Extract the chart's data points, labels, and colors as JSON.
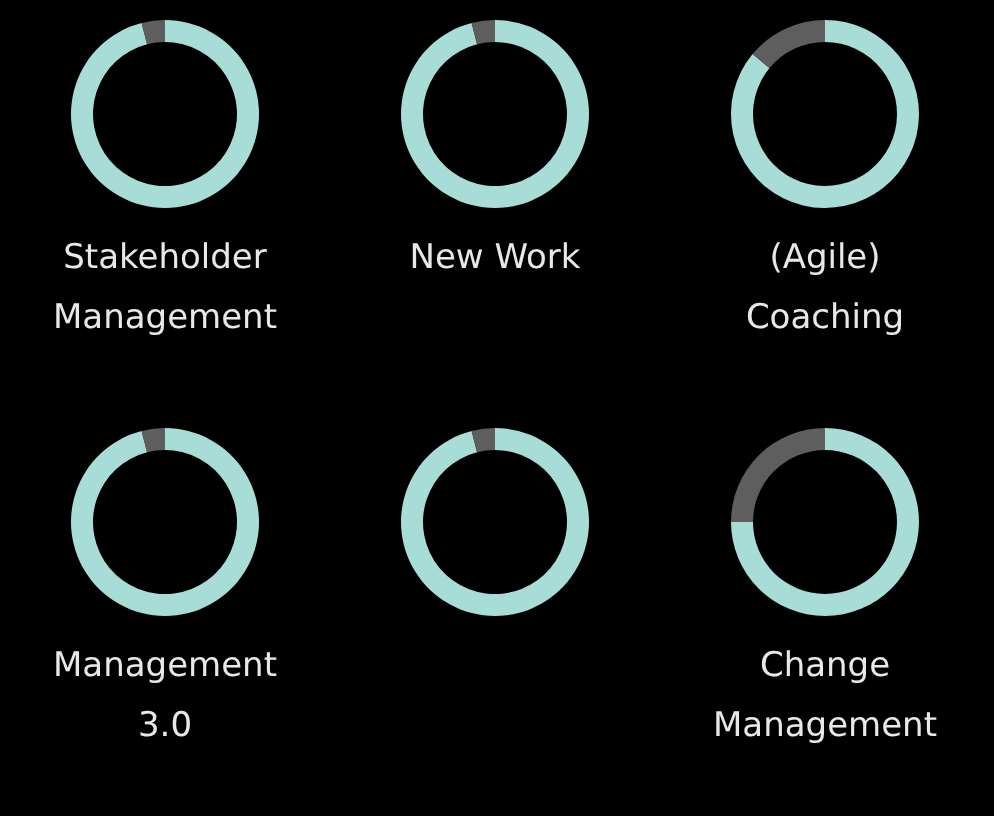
{
  "chart_data": [
    {
      "type": "donut",
      "title": "Stakeholder\nManagement",
      "categories": [
        null,
        null
      ],
      "values": [
        96,
        4
      ],
      "colors": [
        "#a8dcd6",
        "#5e5e5e"
      ]
    },
    {
      "type": "donut",
      "title": "New Work",
      "categories": [
        null,
        null
      ],
      "values": [
        96,
        4
      ],
      "colors": [
        "#a8dcd6",
        "#5e5e5e"
      ]
    },
    {
      "type": "donut",
      "title": "(Agile)\nCoaching",
      "categories": [
        null,
        null
      ],
      "values": [
        86,
        14
      ],
      "colors": [
        "#a8dcd6",
        "#5e5e5e"
      ]
    },
    {
      "type": "donut",
      "title": "Management\n3.0",
      "categories": [
        null,
        null
      ],
      "values": [
        96,
        4
      ],
      "colors": [
        "#a8dcd6",
        "#5e5e5e"
      ]
    },
    {
      "type": "donut",
      "categories": [
        null,
        null
      ],
      "values": [
        96,
        4
      ],
      "colors": [
        "#a8dcd6",
        "#5e5e5e"
      ]
    },
    {
      "type": "donut",
      "title": "Change\nManagement",
      "categories": [
        null,
        null
      ],
      "values": [
        75,
        25
      ],
      "colors": [
        "#a8dcd6",
        "#5e5e5e"
      ]
    }
  ]
}
